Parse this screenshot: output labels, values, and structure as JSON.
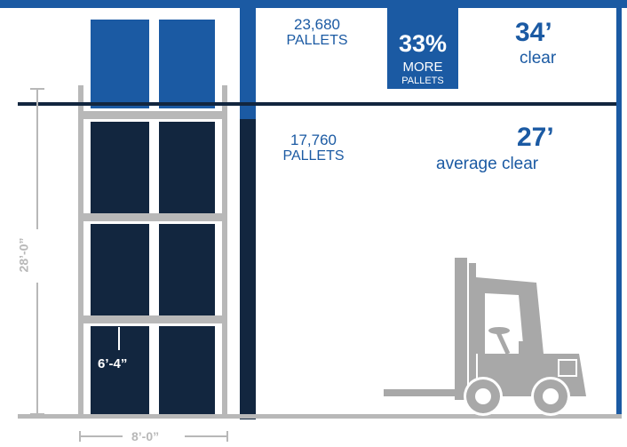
{
  "top_tier": {
    "pallet_count": "23,680",
    "pallet_label": "PALLETS",
    "clear_height": "34’",
    "clear_label": "clear"
  },
  "more_badge": {
    "percent": "33%",
    "line1": "MORE",
    "line2": "PALLETS"
  },
  "bottom_tier": {
    "pallet_count": "17,760",
    "pallet_label": "PALLETS",
    "clear_height": "27’",
    "clear_label": "average clear"
  },
  "dimensions": {
    "rack_height": "28’-0”",
    "rack_width": "8’-0”",
    "pallet_height": "6’-4”"
  },
  "colors": {
    "brand_blue": "#1b5aa3",
    "navy": "#12263f",
    "rack_gray": "#b8b8b8",
    "forklift_gray": "#a8a8a8"
  },
  "icons": [
    "forklift-icon"
  ]
}
